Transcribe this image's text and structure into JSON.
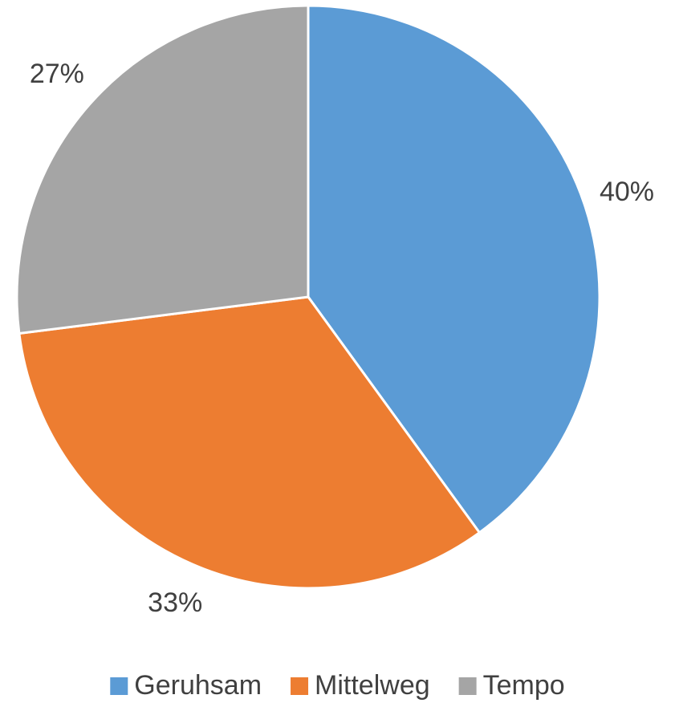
{
  "chart_data": {
    "type": "pie",
    "categories": [
      "Geruhsam",
      "Mittelweg",
      "Tempo"
    ],
    "values": [
      40,
      33,
      27
    ],
    "value_labels": [
      "40%",
      "33%",
      "27%"
    ],
    "colors": [
      "#5b9bd5",
      "#ed7d31",
      "#a5a5a5"
    ],
    "legend": "bottom"
  }
}
